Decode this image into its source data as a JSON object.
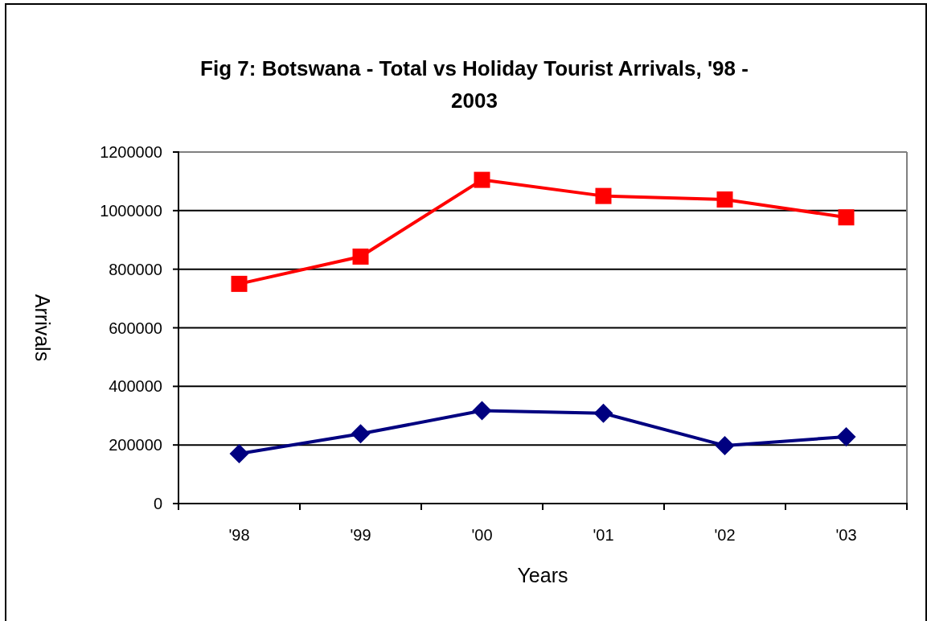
{
  "chart_data": {
    "type": "line",
    "title": "Fig 7: Botswana - Total vs Holiday Tourist Arrivals, '98 - 2003",
    "xlabel": "Years",
    "ylabel": "Arrivals",
    "categories": [
      "'98",
      "'99",
      "'00",
      "'01",
      "'02",
      "'03"
    ],
    "series": [
      {
        "color": "#ff0000",
        "marker": "square",
        "values": [
          750000,
          843000,
          1105000,
          1050000,
          1038000,
          977000
        ]
      },
      {
        "color": "#000080",
        "marker": "diamond",
        "values": [
          170000,
          238000,
          317000,
          308000,
          198000,
          228000
        ]
      }
    ],
    "ylim": [
      0,
      1200000
    ],
    "yticks": [
      0,
      200000,
      400000,
      600000,
      800000,
      1000000,
      1200000
    ],
    "grid": "y"
  }
}
